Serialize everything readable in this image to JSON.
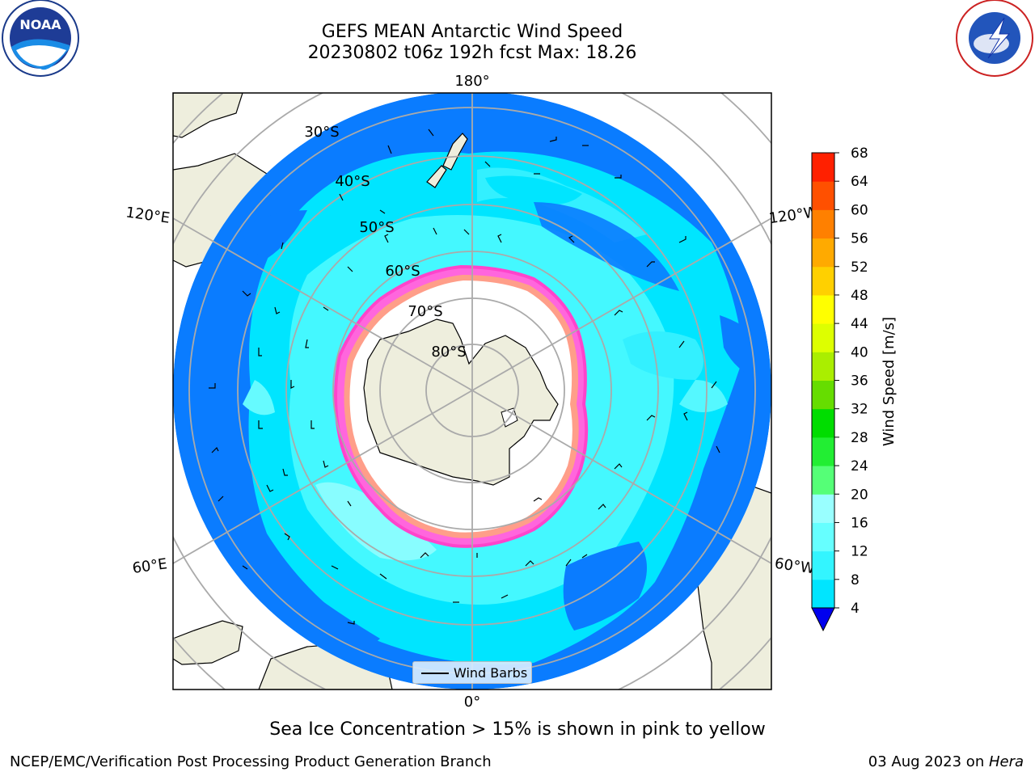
{
  "title_line1": "GEFS MEAN Antarctic Wind Speed",
  "title_line2": "20230802 t06z 192h fcst   Max: 18.26",
  "logos": {
    "left": "noaa-logo",
    "right": "national-weather-service-logo"
  },
  "longitude_labels": {
    "top": "180°",
    "left": "120°E",
    "right": "120°W",
    "lower_left": "60°E",
    "lower_right": "60°W",
    "bottom": "0°"
  },
  "latitude_labels": [
    "30°S",
    "40°S",
    "50°S",
    "60°S",
    "70°S",
    "80°S"
  ],
  "legend_label": "Wind Barbs",
  "colorbar": {
    "label": "Wind Speed [m/s]",
    "ticks": [
      "4",
      "8",
      "12",
      "16",
      "20",
      "24",
      "28",
      "32",
      "36",
      "40",
      "44",
      "48",
      "52",
      "56",
      "60",
      "64",
      "68"
    ],
    "colors": [
      "#0066ff",
      "#00e5ff",
      "#33f5ff",
      "#66ffff",
      "#99ffff",
      "#55ff77",
      "#22ee33",
      "#00dd00",
      "#66dd00",
      "#aaee00",
      "#ddff00",
      "#ffff00",
      "#ffd000",
      "#ffaa00",
      "#ff8000",
      "#ff5000",
      "#ff2000",
      "#ff0000"
    ],
    "under_color": "#0000ee"
  },
  "caption": "Sea Ice Concentration > 15% is shown in pink to yellow",
  "footer_left": "NCEP/EMC/Verification Post Processing Product Generation Branch",
  "footer_right_date": "03 Aug 2023 on ",
  "footer_right_host": "Hera"
}
